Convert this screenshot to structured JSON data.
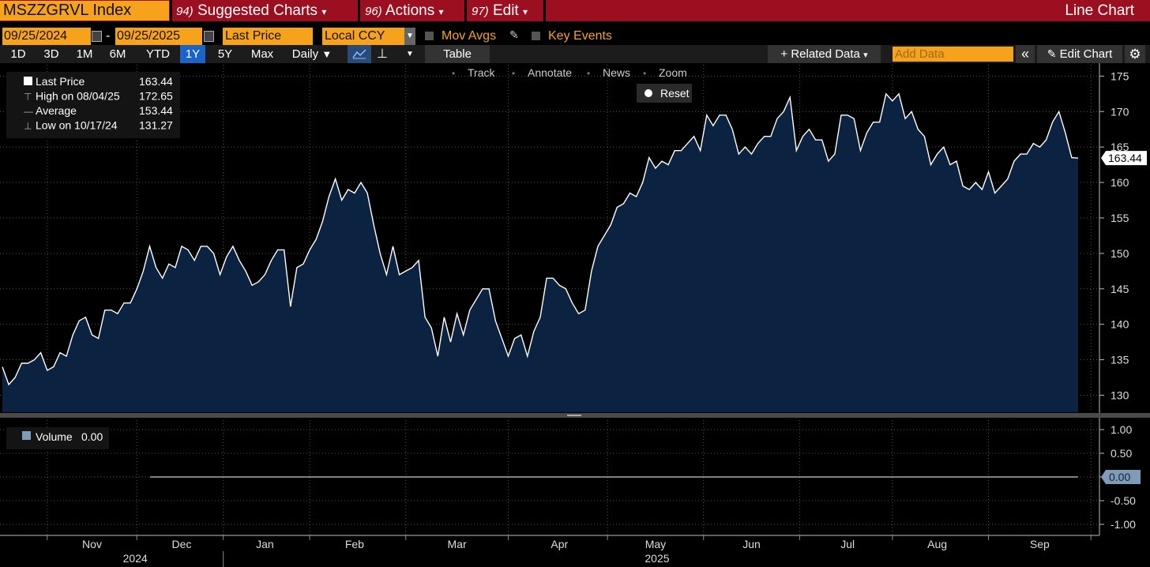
{
  "header": {
    "ticker": "MSZZGRVL Index",
    "menus": [
      {
        "num": "94)",
        "label": "Suggested Charts"
      },
      {
        "num": "96)",
        "label": "Actions"
      },
      {
        "num": "97)",
        "label": "Edit"
      }
    ],
    "view": "Line Chart"
  },
  "controls": {
    "start_date": "09/25/2024",
    "date_separator": "-",
    "end_date": "09/25/2025",
    "field": "Last Price",
    "currency": "Local CCY",
    "mov_avgs": "Mov Avgs",
    "key_events": "Key Events"
  },
  "toolbar": {
    "periods": [
      "1D",
      "3D",
      "1M",
      "6M",
      "YTD",
      "1Y",
      "5Y",
      "Max"
    ],
    "active_period": 5,
    "frequency": "Daily",
    "table": "Table",
    "related_data": "+ Related Data",
    "add_data": "Add Data",
    "edit_chart": "Edit Chart"
  },
  "chart_tools": [
    "Track",
    "Annotate",
    "News",
    "Zoom"
  ],
  "reset": "Reset",
  "chart_data": [
    {
      "type": "line",
      "legend": [
        {
          "label": "Last Price",
          "value": 163.44
        },
        {
          "label": "High on 08/04/25",
          "value": 172.65
        },
        {
          "label": "Average",
          "value": 153.44
        },
        {
          "label": "Low on 10/17/24",
          "value": 131.27
        }
      ],
      "categories": [
        null,
        null,
        null,
        null,
        null,
        null,
        null,
        null,
        null,
        null,
        null,
        null,
        null,
        null,
        "Nov",
        null,
        null,
        null,
        null,
        null,
        null,
        null,
        null,
        null,
        null,
        null,
        null,
        null,
        "Dec",
        null,
        null,
        null,
        null,
        null,
        null,
        null,
        null,
        null,
        null,
        null,
        null,
        "Jan",
        null,
        null,
        null,
        null,
        null,
        null,
        null,
        null,
        null,
        null,
        null,
        null,
        null,
        "Feb",
        null,
        null,
        null,
        null,
        null,
        null,
        null,
        null,
        null,
        null,
        null,
        null,
        null,
        null,
        null,
        "Mar",
        null,
        null,
        null,
        null,
        null,
        null,
        null,
        null,
        null,
        null,
        null,
        null,
        null,
        null,
        null,
        "Apr",
        null,
        null,
        null,
        null,
        null,
        null,
        null,
        null,
        null,
        null,
        null,
        null,
        null,
        null,
        "May",
        null,
        null,
        null,
        null,
        null,
        null,
        null,
        null,
        null,
        null,
        null,
        null,
        null,
        null,
        "Jun",
        null,
        null,
        null,
        null,
        null,
        null,
        null,
        null,
        null,
        null,
        null,
        null,
        null,
        null,
        "Jul",
        null,
        null,
        null,
        null,
        null,
        null,
        null,
        null,
        null,
        null,
        null,
        null,
        null,
        "Aug",
        null,
        null,
        null,
        null,
        null,
        null,
        null,
        null,
        null,
        null,
        null,
        null,
        null,
        null,
        null,
        "Sep",
        null,
        null,
        null,
        null,
        null,
        null
      ],
      "years": [
        "2024",
        "2025"
      ],
      "series": [
        {
          "name": "Last Price",
          "color": "#ffffff",
          "fill": "#0b2240",
          "values": [
            134,
            131.5,
            132.5,
            134.5,
            134.5,
            135,
            136,
            133.5,
            134,
            136,
            135.5,
            138.5,
            140.5,
            141,
            138.5,
            138,
            142,
            142,
            141.5,
            143,
            143,
            145,
            147.5,
            151,
            148,
            146.5,
            148.5,
            148,
            151,
            150.5,
            149,
            151,
            151,
            150,
            147,
            149.5,
            151,
            149,
            147.5,
            145.5,
            146,
            147,
            149,
            150.5,
            150.5,
            142.5,
            148,
            148.5,
            150.5,
            152,
            154.5,
            158,
            160.5,
            157.5,
            159,
            158.5,
            160,
            158.5,
            154,
            150,
            147,
            151,
            147,
            147.5,
            148,
            149,
            141,
            139.5,
            135.5,
            141,
            137.5,
            141.5,
            138.5,
            142,
            143.5,
            145,
            145,
            140.5,
            138,
            135.5,
            138,
            138.5,
            135.5,
            139,
            141,
            146.5,
            146.5,
            145.5,
            145,
            143,
            141.5,
            142,
            147.5,
            151,
            152.5,
            154,
            156.5,
            157,
            158.5,
            158,
            160,
            163.5,
            162,
            163,
            162.5,
            164.5,
            164.5,
            165.5,
            166.5,
            164.5,
            169.5,
            168,
            169.5,
            169.5,
            167.5,
            164,
            165,
            164,
            165.5,
            166.5,
            166.5,
            169,
            170,
            172,
            164.5,
            166.5,
            167.5,
            166,
            166,
            163,
            164,
            169.5,
            169.5,
            169,
            164.5,
            167,
            168.5,
            168.5,
            172.5,
            171.5,
            172.5,
            169,
            170,
            167.5,
            166.5,
            162.5,
            164,
            165,
            162.5,
            163,
            159.5,
            159,
            160,
            159,
            161.5,
            158.5,
            159.5,
            160.5,
            163,
            164,
            164,
            165.5,
            165,
            166,
            168.5,
            170,
            167,
            163.5,
            163.44
          ]
        }
      ],
      "ylim": [
        127.6,
        176.6
      ],
      "yticks": [
        130,
        135,
        140,
        145,
        150,
        155,
        160,
        165,
        170,
        175
      ],
      "grid": true
    },
    {
      "type": "line",
      "series": [
        {
          "name": "Volume",
          "color": "#ffffff",
          "value": {
            "value": 0,
            "label": "0.00"
          }
        }
      ],
      "ylim": [
        -1.2,
        1.2
      ],
      "yticks": [
        {
          "value": 1,
          "label": "1.00"
        },
        {
          "value": 0.5,
          "label": "0.50"
        },
        {
          "value": 0,
          "label": "0.00"
        },
        {
          "value": -0.5,
          "label": "-0.50"
        },
        {
          "value": -1,
          "label": "-1.00"
        }
      ],
      "grid": true
    }
  ]
}
